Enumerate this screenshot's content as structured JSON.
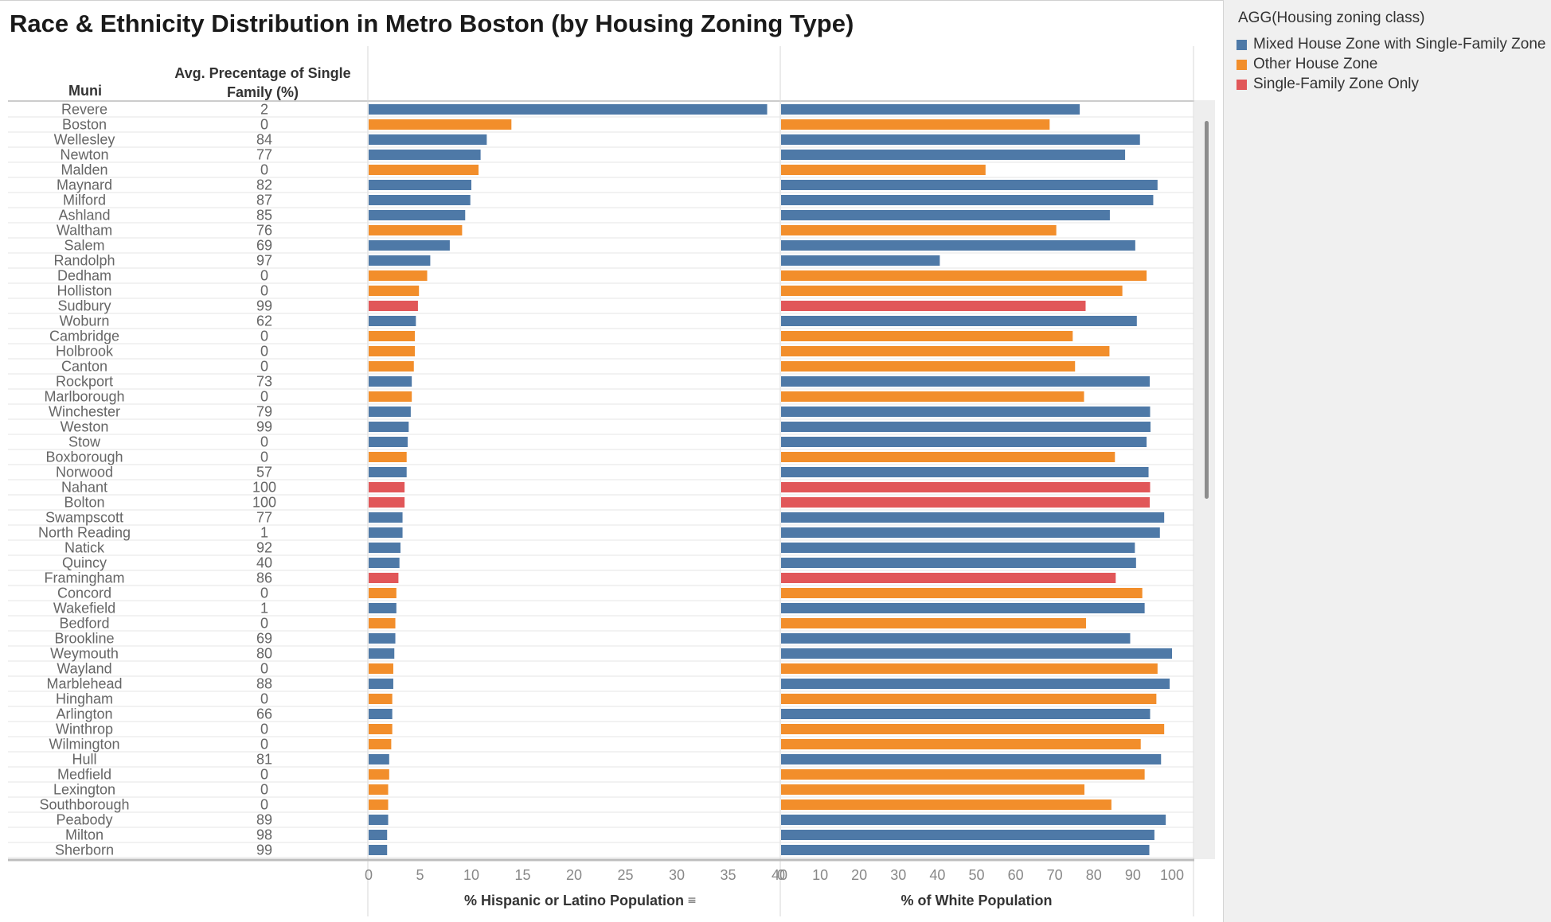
{
  "title": "Race & Ethnicity Distribution in Metro Boston (by Housing Zoning Type)",
  "headers": {
    "muni": "Muni",
    "avg_single_family": "Avg. Precentage of Single Family (%)"
  },
  "legend": {
    "title": "AGG(Housing zoning class)",
    "items": [
      {
        "label": "Mixed House Zone with Single-Family Zone",
        "color": "#4e79a7"
      },
      {
        "label": "Other House Zone",
        "color": "#f28e2b"
      },
      {
        "label": "Single-Family Zone Only",
        "color": "#e15759"
      }
    ]
  },
  "chart_data": {
    "type": "bar",
    "orientation": "horizontal",
    "category_key": "Muni",
    "color_key": "AGG(Housing zoning class)",
    "rows": [
      {
        "muni": "Revere",
        "avg_sf": "2",
        "zone": 0,
        "hispanic": 38.8,
        "white": 76.4
      },
      {
        "muni": "Boston",
        "avg_sf": "0",
        "zone": 1,
        "hispanic": 13.9,
        "white": 68.7
      },
      {
        "muni": "Wellesley",
        "avg_sf": "84",
        "zone": 0,
        "hispanic": 11.5,
        "white": 91.8
      },
      {
        "muni": "Newton",
        "avg_sf": "77",
        "zone": 0,
        "hispanic": 10.9,
        "white": 88.0
      },
      {
        "muni": "Malden",
        "avg_sf": "0",
        "zone": 1,
        "hispanic": 10.7,
        "white": 52.3
      },
      {
        "muni": "Maynard",
        "avg_sf": "82",
        "zone": 0,
        "hispanic": 10.0,
        "white": 96.3
      },
      {
        "muni": "Milford",
        "avg_sf": "87",
        "zone": 0,
        "hispanic": 9.9,
        "white": 95.2
      },
      {
        "muni": "Ashland",
        "avg_sf": "85",
        "zone": 0,
        "hispanic": 9.4,
        "white": 84.1
      },
      {
        "muni": "Waltham",
        "avg_sf": "76",
        "zone": 1,
        "hispanic": 9.1,
        "white": 70.4
      },
      {
        "muni": "Salem",
        "avg_sf": "69",
        "zone": 0,
        "hispanic": 7.9,
        "white": 90.6
      },
      {
        "muni": "Randolph",
        "avg_sf": "97",
        "zone": 0,
        "hispanic": 6.0,
        "white": 40.6
      },
      {
        "muni": "Dedham",
        "avg_sf": "0",
        "zone": 1,
        "hispanic": 5.7,
        "white": 93.5
      },
      {
        "muni": "Holliston",
        "avg_sf": "0",
        "zone": 1,
        "hispanic": 4.9,
        "white": 87.3
      },
      {
        "muni": "Sudbury",
        "avg_sf": "99",
        "zone": 2,
        "hispanic": 4.8,
        "white": 77.9
      },
      {
        "muni": "Woburn",
        "avg_sf": "62",
        "zone": 0,
        "hispanic": 4.6,
        "white": 91.0
      },
      {
        "muni": "Cambridge",
        "avg_sf": "0",
        "zone": 1,
        "hispanic": 4.5,
        "white": 74.6
      },
      {
        "muni": "Holbrook",
        "avg_sf": "0",
        "zone": 1,
        "hispanic": 4.5,
        "white": 84.0
      },
      {
        "muni": "Canton",
        "avg_sf": "0",
        "zone": 1,
        "hispanic": 4.4,
        "white": 75.2
      },
      {
        "muni": "Rockport",
        "avg_sf": "73",
        "zone": 0,
        "hispanic": 4.2,
        "white": 94.3
      },
      {
        "muni": "Marlborough",
        "avg_sf": "0",
        "zone": 1,
        "hispanic": 4.2,
        "white": 77.5
      },
      {
        "muni": "Winchester",
        "avg_sf": "79",
        "zone": 0,
        "hispanic": 4.1,
        "white": 94.4
      },
      {
        "muni": "Weston",
        "avg_sf": "99",
        "zone": 0,
        "hispanic": 3.9,
        "white": 94.5
      },
      {
        "muni": "Stow",
        "avg_sf": "0",
        "zone": 0,
        "hispanic": 3.8,
        "white": 93.5
      },
      {
        "muni": "Boxborough",
        "avg_sf": "0",
        "zone": 1,
        "hispanic": 3.7,
        "white": 85.4
      },
      {
        "muni": "Norwood",
        "avg_sf": "57",
        "zone": 0,
        "hispanic": 3.7,
        "white": 94.0
      },
      {
        "muni": "Nahant",
        "avg_sf": "100",
        "zone": 2,
        "hispanic": 3.5,
        "white": 94.4
      },
      {
        "muni": "Bolton",
        "avg_sf": "100",
        "zone": 2,
        "hispanic": 3.5,
        "white": 94.3
      },
      {
        "muni": "Swampscott",
        "avg_sf": "77",
        "zone": 0,
        "hispanic": 3.3,
        "white": 98.0
      },
      {
        "muni": "North Reading",
        "avg_sf": "1",
        "zone": 0,
        "hispanic": 3.3,
        "white": 96.9
      },
      {
        "muni": "Natick",
        "avg_sf": "92",
        "zone": 0,
        "hispanic": 3.1,
        "white": 90.5
      },
      {
        "muni": "Quincy",
        "avg_sf": "40",
        "zone": 0,
        "hispanic": 3.0,
        "white": 90.8
      },
      {
        "muni": "Framingham",
        "avg_sf": "86",
        "zone": 2,
        "hispanic": 2.9,
        "white": 85.6
      },
      {
        "muni": "Concord",
        "avg_sf": "0",
        "zone": 1,
        "hispanic": 2.7,
        "white": 92.4
      },
      {
        "muni": "Wakefield",
        "avg_sf": "1",
        "zone": 0,
        "hispanic": 2.7,
        "white": 93.0
      },
      {
        "muni": "Bedford",
        "avg_sf": "0",
        "zone": 1,
        "hispanic": 2.6,
        "white": 78.0
      },
      {
        "muni": "Brookline",
        "avg_sf": "69",
        "zone": 0,
        "hispanic": 2.6,
        "white": 89.3
      },
      {
        "muni": "Weymouth",
        "avg_sf": "80",
        "zone": 0,
        "hispanic": 2.5,
        "white": 100.0
      },
      {
        "muni": "Wayland",
        "avg_sf": "0",
        "zone": 1,
        "hispanic": 2.4,
        "white": 96.3
      },
      {
        "muni": "Marblehead",
        "avg_sf": "88",
        "zone": 0,
        "hispanic": 2.4,
        "white": 99.4
      },
      {
        "muni": "Hingham",
        "avg_sf": "0",
        "zone": 1,
        "hispanic": 2.3,
        "white": 96.0
      },
      {
        "muni": "Arlington",
        "avg_sf": "66",
        "zone": 0,
        "hispanic": 2.3,
        "white": 94.4
      },
      {
        "muni": "Winthrop",
        "avg_sf": "0",
        "zone": 1,
        "hispanic": 2.3,
        "white": 98.0
      },
      {
        "muni": "Wilmington",
        "avg_sf": "0",
        "zone": 1,
        "hispanic": 2.2,
        "white": 92.0
      },
      {
        "muni": "Hull",
        "avg_sf": "81",
        "zone": 0,
        "hispanic": 2.0,
        "white": 97.2
      },
      {
        "muni": "Medfield",
        "avg_sf": "0",
        "zone": 1,
        "hispanic": 2.0,
        "white": 93.0
      },
      {
        "muni": "Lexington",
        "avg_sf": "0",
        "zone": 1,
        "hispanic": 1.9,
        "white": 77.6
      },
      {
        "muni": "Southborough",
        "avg_sf": "0",
        "zone": 1,
        "hispanic": 1.9,
        "white": 84.5
      },
      {
        "muni": "Peabody",
        "avg_sf": "89",
        "zone": 0,
        "hispanic": 1.9,
        "white": 98.4
      },
      {
        "muni": "Milton",
        "avg_sf": "98",
        "zone": 0,
        "hispanic": 1.8,
        "white": 95.5
      },
      {
        "muni": "Sherborn",
        "avg_sf": "99",
        "zone": 0,
        "hispanic": 1.8,
        "white": 94.2
      }
    ],
    "panels": [
      {
        "key": "hispanic",
        "xlabel": "% Hispanic or Latino Population",
        "xlim": [
          0,
          40
        ],
        "ticks": [
          0,
          5,
          10,
          15,
          20,
          25,
          30,
          35,
          40
        ],
        "sorted": true
      },
      {
        "key": "white",
        "xlabel": "% of White Population",
        "xlim": [
          0,
          100
        ],
        "ticks": [
          0,
          10,
          20,
          30,
          40,
          50,
          60,
          70,
          80,
          90,
          100
        ],
        "sorted": false
      }
    ]
  }
}
